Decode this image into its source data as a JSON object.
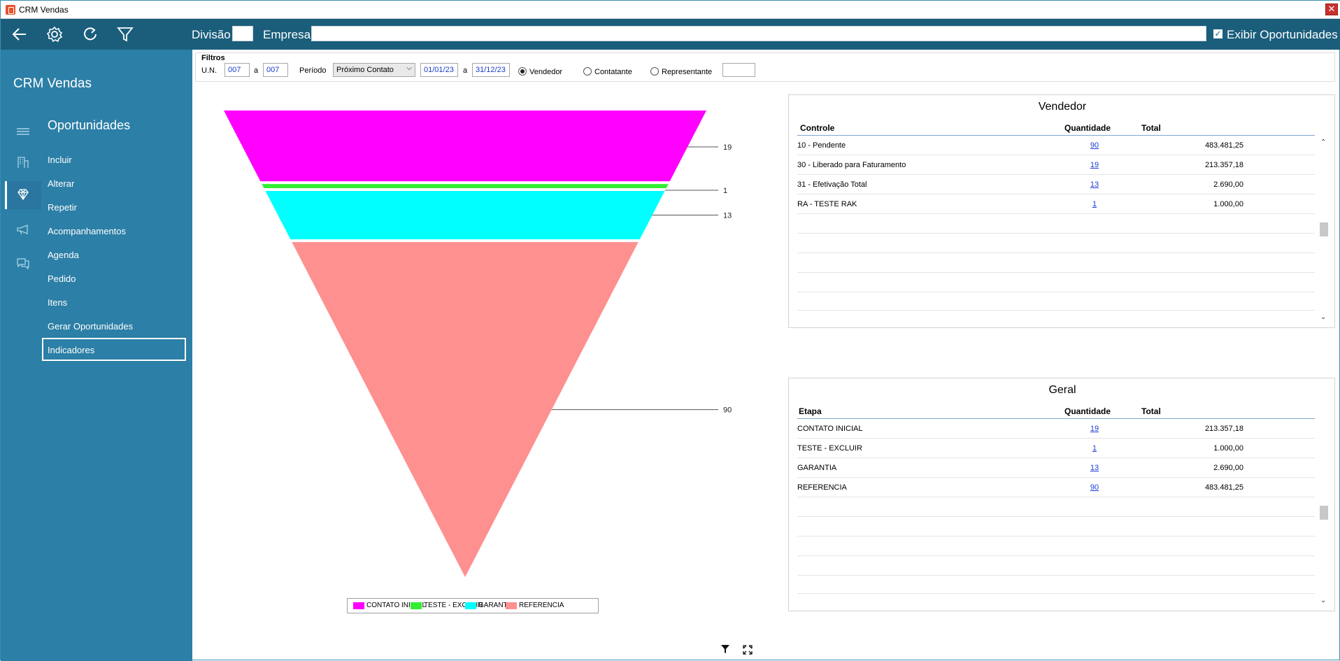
{
  "window": {
    "title": "CRM Vendas",
    "close_glyph": "✕"
  },
  "toolbar": {
    "icons": [
      "back-arrow-icon",
      "gear-icon",
      "refresh-icon",
      "filter-icon"
    ],
    "divisao_label": "Divisão",
    "divisao_value": "",
    "empresa_label": "Empresa",
    "empresa_value": "",
    "exibir_label": "Exibir Oportunidades",
    "exibir_checked": true
  },
  "sidebar": {
    "brand": "CRM Vendas",
    "section": "Oportunidades",
    "items": [
      {
        "label": "Incluir"
      },
      {
        "label": "Alterar"
      },
      {
        "label": "Repetir"
      },
      {
        "label": "Acompanhamentos"
      },
      {
        "label": "Agenda"
      },
      {
        "label": "Pedido"
      },
      {
        "label": "Itens"
      },
      {
        "label": "Gerar Oportunidades"
      },
      {
        "label": "Indicadores"
      }
    ],
    "selected": "Indicadores"
  },
  "filters": {
    "title": "Filtros",
    "un_label": "U.N.",
    "un_from": "007",
    "a1": "a",
    "un_to": "007",
    "periodo_label": "Período",
    "periodo_value": "Próximo Contato",
    "date_from": "01/01/23",
    "a2": "a",
    "date_to": "31/12/23",
    "radios": [
      {
        "label": "Vendedor",
        "checked": true
      },
      {
        "label": "Contatante",
        "checked": false
      },
      {
        "label": "Representante",
        "checked": false
      }
    ],
    "extra_value": ""
  },
  "chart_data": {
    "type": "funnel",
    "categories": [
      "CONTATO INICIAL",
      "TESTE - EXCLUIR",
      "GARANTIA",
      "REFERENCIA"
    ],
    "values": [
      19,
      1,
      13,
      90
    ],
    "colors": [
      "#ff00ff",
      "#33ee33",
      "#00ffff",
      "#ff9090"
    ],
    "data_labels": [
      "19",
      "1",
      "13",
      "90"
    ],
    "legend": "bottom-center"
  },
  "vendedor": {
    "title": "Vendedor",
    "headers": [
      "Controle",
      "Quantidade",
      "Total"
    ],
    "rows": [
      {
        "controle": "10  -  Pendente",
        "quantidade": "90",
        "total": "483.481,25"
      },
      {
        "controle": "30  -  Liberado para Faturamento",
        "quantidade": "19",
        "total": "213.357,18"
      },
      {
        "controle": "31  -  Efetivação Total",
        "quantidade": "13",
        "total": "2.690,00"
      },
      {
        "controle": "RA  -  TESTE RAK",
        "quantidade": "1",
        "total": "1.000,00"
      }
    ]
  },
  "geral": {
    "title": "Geral",
    "headers": [
      "Etapa",
      "Quantidade",
      "Total"
    ],
    "rows": [
      {
        "etapa": "CONTATO INICIAL",
        "quantidade": "19",
        "total": "213.357,18"
      },
      {
        "etapa": "TESTE - EXCLUIR",
        "quantidade": "1",
        "total": "1.000,00"
      },
      {
        "etapa": "GARANTIA",
        "quantidade": "13",
        "total": "2.690,00"
      },
      {
        "etapa": "REFERENCIA",
        "quantidade": "90",
        "total": "483.481,25"
      }
    ]
  },
  "bottom_icons": [
    "funnel-filter-icon",
    "expand-icon"
  ]
}
